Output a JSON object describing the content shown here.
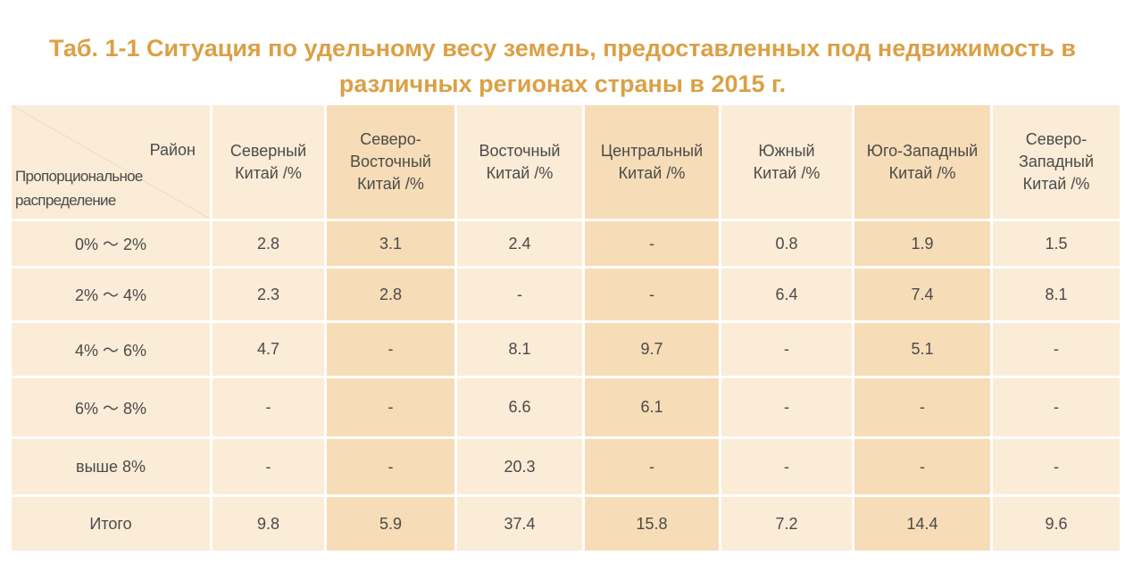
{
  "title_line1": "Таб. 1-1 Ситуация по удельному весу земель, предоставленных под недвижимость в",
  "title_line2": "различных регионах страны  в 2015 г.",
  "corner": {
    "top": "Район",
    "bottom_line1": "Пропорциональное",
    "bottom_line2": "распределение"
  },
  "columns": [
    {
      "line1": "Северный",
      "line2": "Китай /%",
      "line3": ""
    },
    {
      "line1": "Северо-",
      "line2": "Восточный",
      "line3": "Китай /%"
    },
    {
      "line1": "Восточный",
      "line2": "Китай /%",
      "line3": ""
    },
    {
      "line1": "Центральный",
      "line2": "Китай /%",
      "line3": ""
    },
    {
      "line1": "Южный",
      "line2": "Китай /%",
      "line3": ""
    },
    {
      "line1": "Юго-Западный",
      "line2": "Китай /%",
      "line3": ""
    },
    {
      "line1": "Северо-",
      "line2": "Западный",
      "line3": "Китай /%"
    }
  ],
  "rows": [
    {
      "label": "0% ～ 2%",
      "values": [
        "2.8",
        "3.1",
        "2.4",
        "-",
        "0.8",
        "1.9",
        "1.5"
      ]
    },
    {
      "label": "2% ～ 4%",
      "values": [
        "2.3",
        "2.8",
        "-",
        "-",
        "6.4",
        "7.4",
        "8.1"
      ]
    },
    {
      "label": "4% ～ 6%",
      "values": [
        "4.7",
        "-",
        "8.1",
        "9.7",
        "-",
        "5.1",
        "-"
      ]
    },
    {
      "label": "6% ～ 8%",
      "values": [
        "-",
        "-",
        "6.6",
        "6.1",
        "-",
        "-",
        "-"
      ]
    },
    {
      "label": "выше 8%",
      "values": [
        "-",
        "-",
        "20.3",
        "-",
        "-",
        "-",
        "-"
      ]
    },
    {
      "label": "Итого",
      "values": [
        "9.8",
        "5.9",
        "37.4",
        "15.8",
        "7.2",
        "14.4",
        "9.6"
      ]
    }
  ],
  "colors": {
    "title": "#dba045",
    "light_cell": "#fbecd7",
    "dark_cell": "#f6dcb7"
  }
}
